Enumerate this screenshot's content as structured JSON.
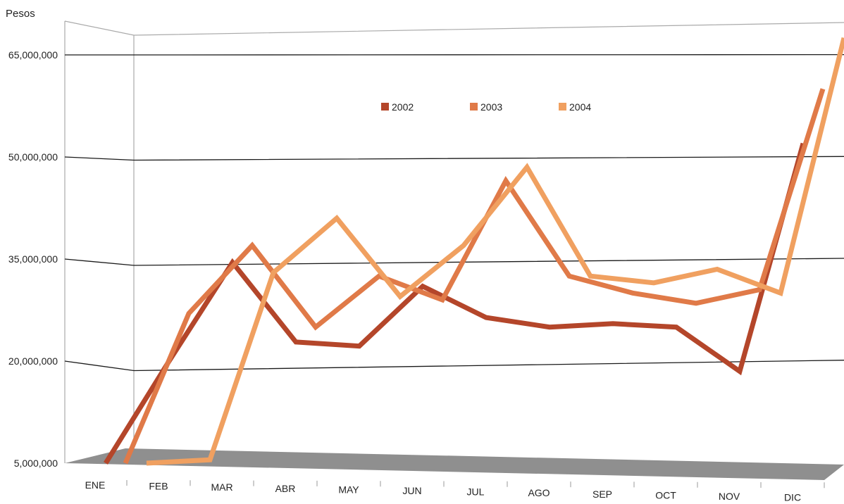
{
  "chart_data": {
    "type": "line",
    "ylabel": "Pesos",
    "xlabel": "",
    "title": "",
    "categories": [
      "ENE",
      "FEB",
      "MAR",
      "ABR",
      "MAY",
      "JUN",
      "JUL",
      "AGO",
      "SEP",
      "OCT",
      "NOV",
      "DIC"
    ],
    "yticks": [
      "5,000,000",
      "20,000,000",
      "35,000,000",
      "50,000,000",
      "65,000,000"
    ],
    "ylim": [
      5000000,
      65000000
    ],
    "grid": true,
    "legend_position": "top-center",
    "series": [
      {
        "name": "2002",
        "color": "#b4462a",
        "values": [
          5000000,
          20000000,
          34500000,
          22800000,
          22200000,
          31000000,
          26400000,
          25000000,
          25500000,
          25000000,
          18500000,
          52000000
        ]
      },
      {
        "name": "2003",
        "color": "#e07a48",
        "values": [
          5000000,
          27000000,
          37000000,
          25000000,
          32500000,
          29000000,
          46500000,
          32500000,
          30000000,
          28500000,
          30500000,
          60000000
        ]
      },
      {
        "name": "2004",
        "color": "#f0a060",
        "values": [
          5000000,
          5500000,
          33000000,
          41000000,
          29500000,
          37000000,
          48500000,
          32500000,
          31500000,
          33500000,
          30000000,
          67500000
        ]
      }
    ]
  }
}
